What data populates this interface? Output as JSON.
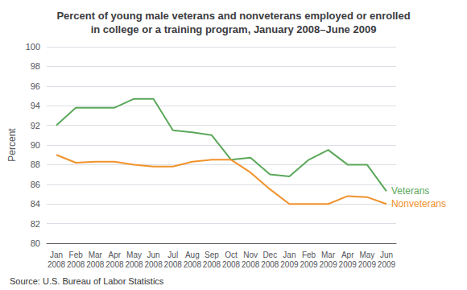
{
  "chart_data": {
    "type": "line",
    "title": "Percent of young male veterans and nonveterans employed or enrolled\nin college or a training program, January 2008–June 2009",
    "y_label": "Percent",
    "annotations": [
      "Source: U.S. Bureau of Labor Statistics"
    ],
    "categories": [
      "Jan\n2008",
      "Feb\n2008",
      "Mar\n2008",
      "Apr\n2008",
      "May\n2008",
      "Jun\n2008",
      "Jul\n2008",
      "Aug\n2008",
      "Sep\n2008",
      "Oct\n2008",
      "Nov\n2008",
      "Dec\n2008",
      "Jan\n2009",
      "Feb\n2009",
      "Mar\n2009",
      "Apr\n2009",
      "May\n2009",
      "Jun\n2009"
    ],
    "series": [
      {
        "name": "Veterans",
        "color": "#5BA85A",
        "values": [
          92.0,
          93.8,
          93.8,
          93.8,
          94.7,
          94.7,
          91.5,
          91.3,
          91.0,
          88.5,
          88.7,
          87.0,
          86.8,
          88.5,
          89.5,
          88.0,
          88.0,
          85.3
        ]
      },
      {
        "name": "Nonveterans",
        "color": "#F0922B",
        "values": [
          89.0,
          88.2,
          88.3,
          88.3,
          88.0,
          87.8,
          87.8,
          88.3,
          88.5,
          88.5,
          87.2,
          85.5,
          84.0,
          84.0,
          84.0,
          84.8,
          84.7,
          84.0
        ]
      }
    ],
    "ylim": [
      80,
      100
    ],
    "yticks": [
      80,
      82,
      84,
      86,
      88,
      90,
      92,
      94,
      96,
      98,
      100
    ],
    "grid": true
  }
}
